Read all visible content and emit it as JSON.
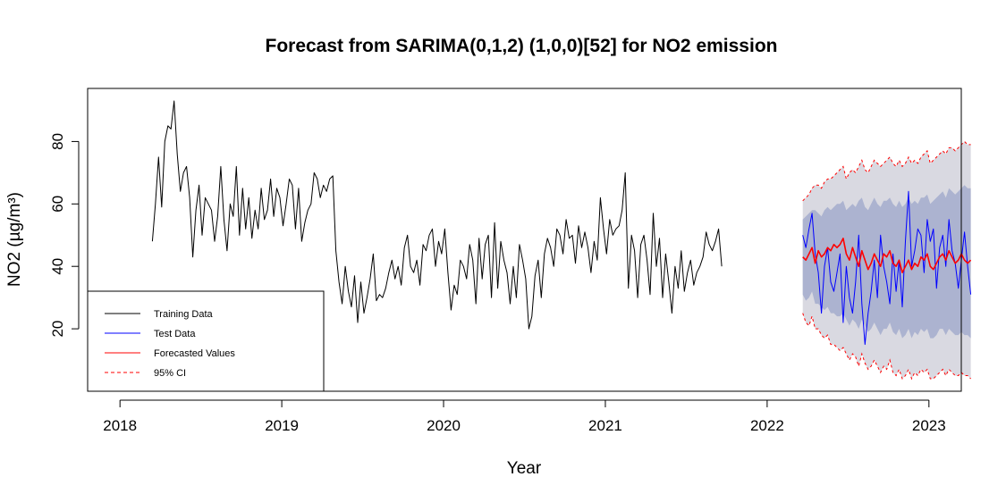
{
  "chart_data": {
    "type": "line",
    "title": "Forecast from SARIMA(0,1,2) (1,0,0)[52] for NO2 emission",
    "xlabel": "Year",
    "ylabel": "NO2 (µg/m³)",
    "xlim": [
      2017.8,
      2023.2
    ],
    "ylim": [
      0,
      97
    ],
    "x_ticks": [
      2018,
      2019,
      2020,
      2021,
      2022,
      2023
    ],
    "x_tick_labels": [
      "2018",
      "2019",
      "2020",
      "2021",
      "2022",
      "2023"
    ],
    "y_ticks": [
      20,
      40,
      60,
      80
    ],
    "y_tick_labels": [
      "20",
      "40",
      "60",
      "80"
    ],
    "legend": {
      "position": "bottom-left",
      "entries": [
        {
          "label": "Training Data",
          "color": "#000000",
          "style": "solid"
        },
        {
          "label": "Test Data",
          "color": "#0000ff",
          "style": "solid"
        },
        {
          "label": "Forecasted Values",
          "color": "#ff0000",
          "style": "solid"
        },
        {
          "label": "95% CI",
          "color": "#ff0000",
          "style": "dashed"
        }
      ]
    },
    "band_colors": {
      "ci95": "#d9d9e1",
      "ci80": "#acb3d0"
    },
    "series": [
      {
        "name": "Training Data",
        "color": "#000000",
        "x_start": 2018.2,
        "x_step": 0.01923,
        "values": [
          48,
          60,
          75,
          59,
          80,
          85,
          84,
          93,
          76,
          64,
          70,
          72,
          62,
          43,
          58,
          66,
          50,
          62,
          60,
          58,
          48,
          56,
          72,
          55,
          45,
          60,
          56,
          72,
          50,
          65,
          52,
          62,
          49,
          58,
          52,
          65,
          55,
          58,
          68,
          56,
          65,
          62,
          53,
          60,
          68,
          66,
          52,
          65,
          48,
          54,
          58,
          60,
          70,
          68,
          62,
          66,
          64,
          68,
          69,
          45,
          35,
          28,
          40,
          32,
          27,
          37,
          22,
          35,
          25,
          30,
          36,
          44,
          29,
          31,
          30,
          33,
          38,
          42,
          36,
          40,
          34,
          46,
          50,
          40,
          38,
          42,
          34,
          47,
          45,
          50,
          52,
          40,
          48,
          44,
          52,
          38,
          26,
          34,
          31,
          42,
          40,
          36,
          47,
          42,
          28,
          49,
          36,
          47,
          50,
          30,
          54,
          33,
          48,
          42,
          38,
          28,
          40,
          30,
          47,
          42,
          36,
          20,
          24,
          37,
          42,
          30,
          44,
          49,
          46,
          40,
          52,
          50,
          44,
          55,
          49,
          50,
          41,
          53,
          46,
          51,
          46,
          38,
          48,
          42,
          62,
          52,
          44,
          55,
          50,
          52,
          53,
          58,
          70,
          33,
          50,
          45,
          30,
          47,
          50,
          42,
          31,
          57,
          40,
          49,
          30,
          44,
          35,
          25,
          40,
          33,
          45,
          32,
          38,
          42,
          34,
          38,
          40,
          43,
          51,
          47,
          45,
          48,
          52,
          40
        ]
      },
      {
        "name": "Test Data",
        "color": "#0000ff",
        "x_start": 2022.22,
        "x_step": 0.01923,
        "values": [
          50,
          46,
          52,
          57,
          44,
          38,
          25,
          40,
          46,
          35,
          32,
          38,
          44,
          22,
          40,
          30,
          25,
          35,
          50,
          28,
          15,
          25,
          32,
          42,
          30,
          50,
          40,
          35,
          28,
          44,
          32,
          42,
          27,
          48,
          64,
          40,
          45,
          52,
          50,
          38,
          55,
          48,
          52,
          33,
          46,
          50,
          40,
          55,
          45,
          41,
          33,
          42,
          51,
          40,
          31
        ]
      },
      {
        "name": "Forecasted Values",
        "color": "#ff0000",
        "x_start": 2022.22,
        "x_step": 0.01923,
        "values": [
          43,
          42,
          44,
          46,
          41,
          45,
          43,
          44,
          46,
          45,
          47,
          46,
          47,
          49,
          44,
          42,
          46,
          43,
          40,
          45,
          42,
          39,
          41,
          44,
          42,
          40,
          44,
          43,
          45,
          41,
          40,
          42,
          38,
          40,
          42,
          39,
          41,
          40,
          43,
          42,
          44,
          40,
          39,
          41,
          43,
          44,
          42,
          45,
          43,
          41,
          42,
          44,
          42,
          41,
          42
        ]
      }
    ],
    "confidence_bands": {
      "x_start": 2022.22,
      "x_step": 0.01923,
      "upper95": [
        61,
        62,
        63,
        65,
        66,
        66,
        65,
        67,
        68,
        68,
        69,
        70,
        71,
        72,
        68,
        70,
        71,
        70,
        72,
        74,
        71,
        70,
        72,
        74,
        73,
        72,
        73,
        74,
        75,
        73,
        72,
        74,
        72,
        73,
        75,
        73,
        74,
        73,
        75,
        76,
        77,
        73,
        74,
        75,
        76,
        77,
        76,
        78,
        78,
        77,
        78,
        79,
        80,
        79,
        79
      ],
      "lower95": [
        25,
        22,
        21,
        24,
        20,
        20,
        18,
        17,
        18,
        15,
        15,
        14,
        13,
        14,
        12,
        10,
        12,
        11,
        8,
        12,
        9,
        7,
        8,
        10,
        8,
        6,
        8,
        7,
        10,
        6,
        5,
        7,
        4,
        5,
        7,
        4,
        6,
        5,
        7,
        6,
        7,
        4,
        4,
        5,
        6,
        7,
        5,
        7,
        6,
        5,
        5,
        6,
        5,
        5,
        4
      ],
      "upper80": [
        55,
        56,
        57,
        58,
        58,
        57,
        56,
        58,
        59,
        58,
        59,
        60,
        60,
        61,
        58,
        59,
        60,
        59,
        61,
        62,
        59,
        58,
        60,
        62,
        60,
        59,
        61,
        61,
        62,
        60,
        59,
        61,
        59,
        60,
        62,
        60,
        61,
        60,
        62,
        62,
        63,
        60,
        61,
        62,
        63,
        64,
        62,
        65,
        64,
        63,
        64,
        65,
        66,
        65,
        65
      ],
      "lower80": [
        31,
        29,
        30,
        32,
        28,
        28,
        27,
        26,
        27,
        25,
        25,
        24,
        24,
        25,
        23,
        21,
        23,
        22,
        20,
        23,
        21,
        19,
        20,
        22,
        20,
        18,
        20,
        20,
        22,
        19,
        18,
        20,
        17,
        18,
        20,
        17,
        19,
        18,
        20,
        19,
        20,
        17,
        17,
        18,
        20,
        20,
        18,
        20,
        19,
        18,
        18,
        19,
        18,
        18,
        17
      ]
    }
  }
}
